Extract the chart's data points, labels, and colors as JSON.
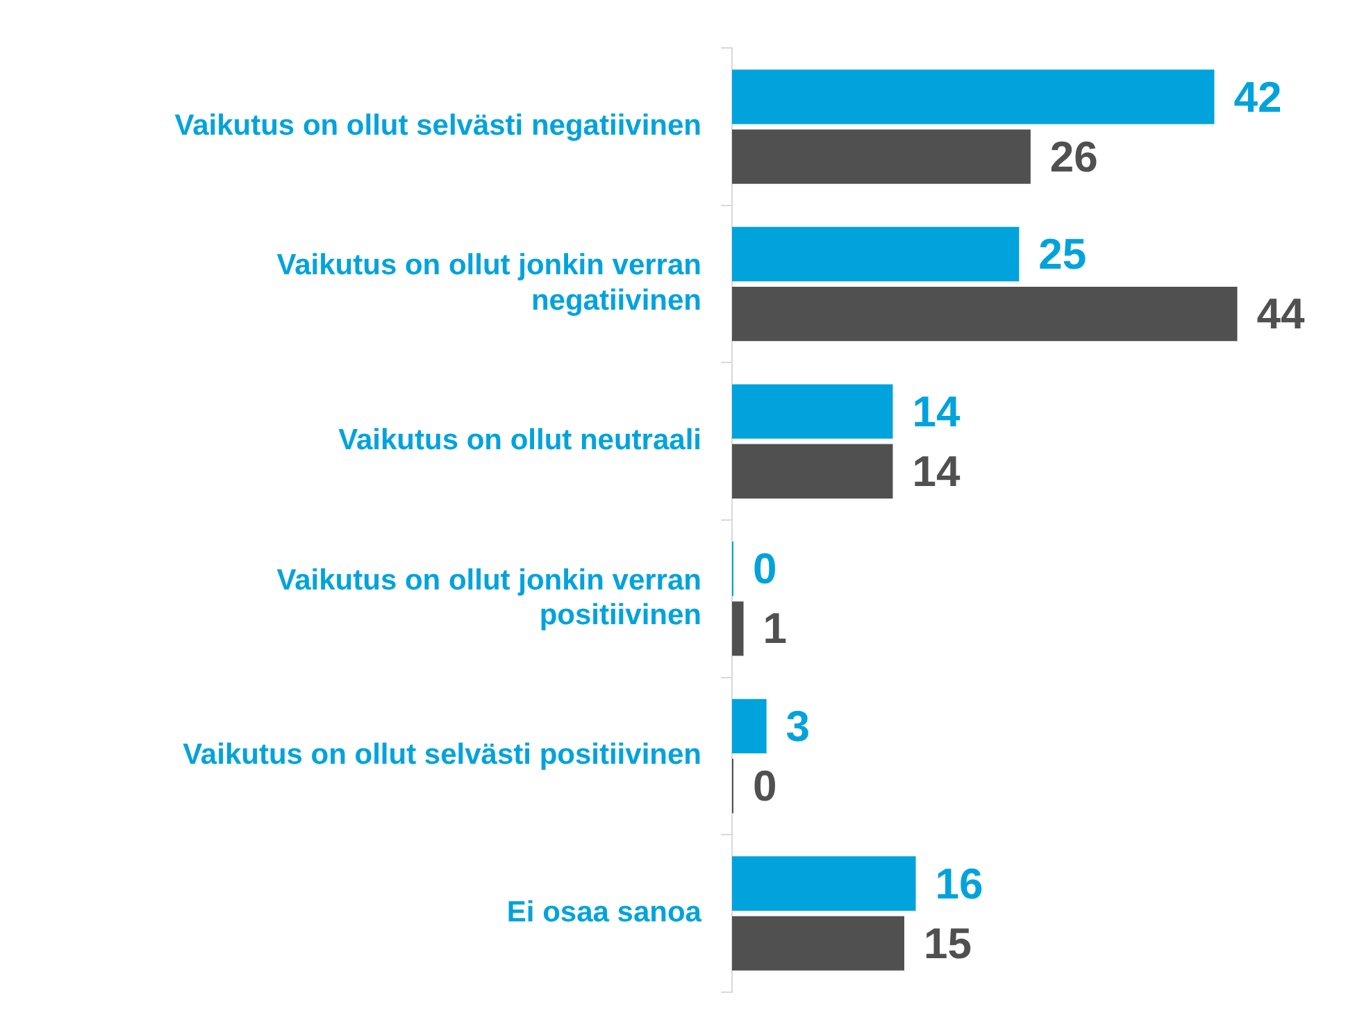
{
  "chart_data": {
    "type": "bar",
    "orientation": "horizontal",
    "categories": [
      "Vaikutus on ollut selvästi negatiivinen",
      "Vaikutus on ollut jonkin verran negatiivinen",
      "Vaikutus on ollut neutraali",
      "Vaikutus on ollut jonkin verran positiivinen",
      "Vaikutus on ollut selvästi positiivinen",
      "Ei osaa sanoa"
    ],
    "series": [
      {
        "color": "#00a3dc",
        "values": [
          42,
          25,
          14,
          0,
          3,
          16
        ]
      },
      {
        "color": "#505050",
        "values": [
          26,
          44,
          14,
          1,
          0,
          15
        ]
      }
    ],
    "data_labels": true,
    "grid": false,
    "legend": false,
    "tick_labels": "y"
  }
}
